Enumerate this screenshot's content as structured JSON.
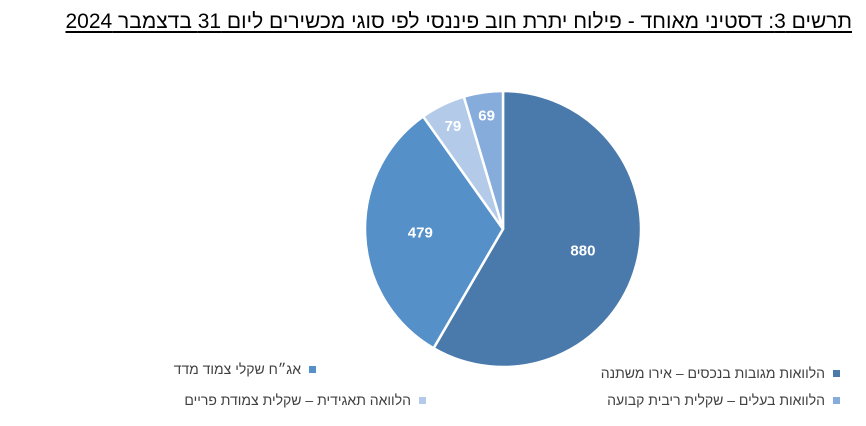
{
  "chart_data": {
    "type": "pie",
    "title": "תרשים 3: דסטיני מאוחד - פילוח יתרת חוב פיננסי לפי סוגי מכשירים ליום 31 בדצמבר 2024",
    "categories": [
      "הלוואות מגובות בנכסים – אירו משתנה",
      "אג״ח שקלי צמוד מדד",
      "הלוואות בעלים – שקלית ריבית קבועה",
      "הלוואה תאגידית – שקלית צמודת פריים"
    ],
    "values": [
      880,
      479,
      69,
      79
    ],
    "slice_order": [
      0,
      1,
      3,
      2
    ],
    "colors": [
      "#4a7aab",
      "#5590c9",
      "#86acdc",
      "#b3cbe8"
    ],
    "legend_position": "bottom"
  }
}
